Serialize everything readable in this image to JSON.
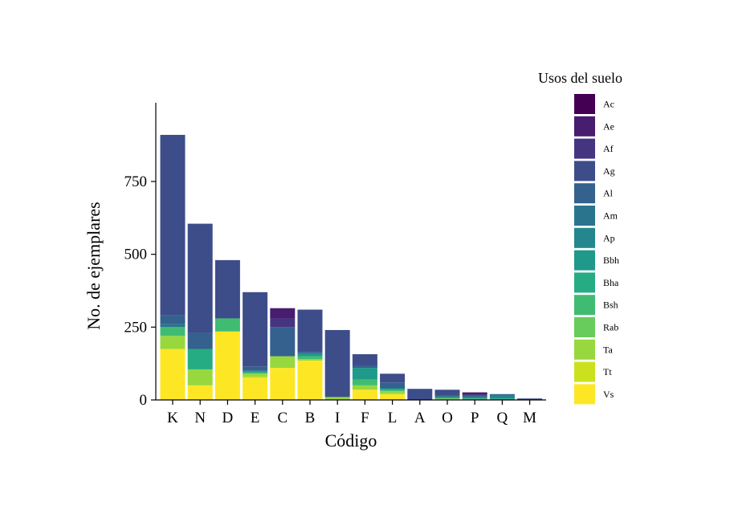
{
  "chart_data": {
    "type": "bar",
    "stacked": true,
    "xlabel": "Código",
    "ylabel": "No. de ejemplares",
    "ylim": [
      0,
      1000
    ],
    "yticks": [
      0,
      250,
      500,
      750
    ],
    "categories": [
      "K",
      "N",
      "D",
      "E",
      "C",
      "B",
      "I",
      "F",
      "L",
      "A",
      "O",
      "P",
      "Q",
      "M"
    ],
    "legend": {
      "title": "Usos del suelo",
      "position": "right"
    },
    "series": [
      {
        "name": "Ac",
        "color": "#440154",
        "values": [
          0,
          0,
          0,
          0,
          0,
          0,
          0,
          0,
          0,
          0,
          0,
          0,
          0,
          0
        ]
      },
      {
        "name": "Ae",
        "color": "#481C6E",
        "values": [
          0,
          0,
          0,
          0,
          35,
          0,
          0,
          0,
          0,
          0,
          0,
          8,
          0,
          0
        ]
      },
      {
        "name": "Af",
        "color": "#453581",
        "values": [
          0,
          0,
          0,
          0,
          30,
          0,
          0,
          0,
          0,
          0,
          0,
          0,
          0,
          0
        ]
      },
      {
        "name": "Ag",
        "color": "#3D4D8A",
        "values": [
          620,
          375,
          200,
          255,
          0,
          145,
          230,
          40,
          30,
          38,
          20,
          0,
          0,
          5
        ]
      },
      {
        "name": "Al",
        "color": "#34618D",
        "values": [
          30,
          55,
          0,
          15,
          100,
          5,
          0,
          7,
          20,
          0,
          0,
          8,
          5,
          0
        ]
      },
      {
        "name": "Am",
        "color": "#2B748E",
        "values": [
          10,
          0,
          0,
          0,
          0,
          0,
          0,
          0,
          0,
          0,
          5,
          0,
          0,
          0
        ]
      },
      {
        "name": "Ap",
        "color": "#24878E",
        "values": [
          0,
          0,
          0,
          0,
          0,
          0,
          0,
          0,
          0,
          0,
          0,
          5,
          10,
          0
        ]
      },
      {
        "name": "Bbh",
        "color": "#1F998A",
        "values": [
          0,
          0,
          0,
          5,
          0,
          10,
          0,
          40,
          5,
          0,
          5,
          0,
          0,
          0
        ]
      },
      {
        "name": "Bha",
        "color": "#25AC82",
        "values": [
          0,
          70,
          0,
          0,
          0,
          0,
          0,
          0,
          0,
          0,
          0,
          0,
          5,
          0
        ]
      },
      {
        "name": "Bsh",
        "color": "#40BC72",
        "values": [
          30,
          0,
          45,
          5,
          0,
          10,
          0,
          20,
          5,
          0,
          0,
          5,
          0,
          0
        ]
      },
      {
        "name": "Rab",
        "color": "#67CC5C",
        "values": [
          0,
          0,
          0,
          0,
          0,
          0,
          0,
          0,
          0,
          0,
          0,
          0,
          0,
          0
        ]
      },
      {
        "name": "Ta",
        "color": "#97D83F",
        "values": [
          45,
          55,
          0,
          10,
          40,
          5,
          10,
          15,
          10,
          0,
          5,
          0,
          0,
          0
        ]
      },
      {
        "name": "Tt",
        "color": "#CBE11E",
        "values": [
          0,
          0,
          0,
          5,
          0,
          0,
          0,
          0,
          0,
          0,
          0,
          0,
          0,
          0
        ]
      },
      {
        "name": "Vs",
        "color": "#FDE725",
        "values": [
          175,
          50,
          235,
          75,
          110,
          135,
          0,
          35,
          20,
          0,
          0,
          0,
          0,
          0
        ]
      }
    ]
  }
}
